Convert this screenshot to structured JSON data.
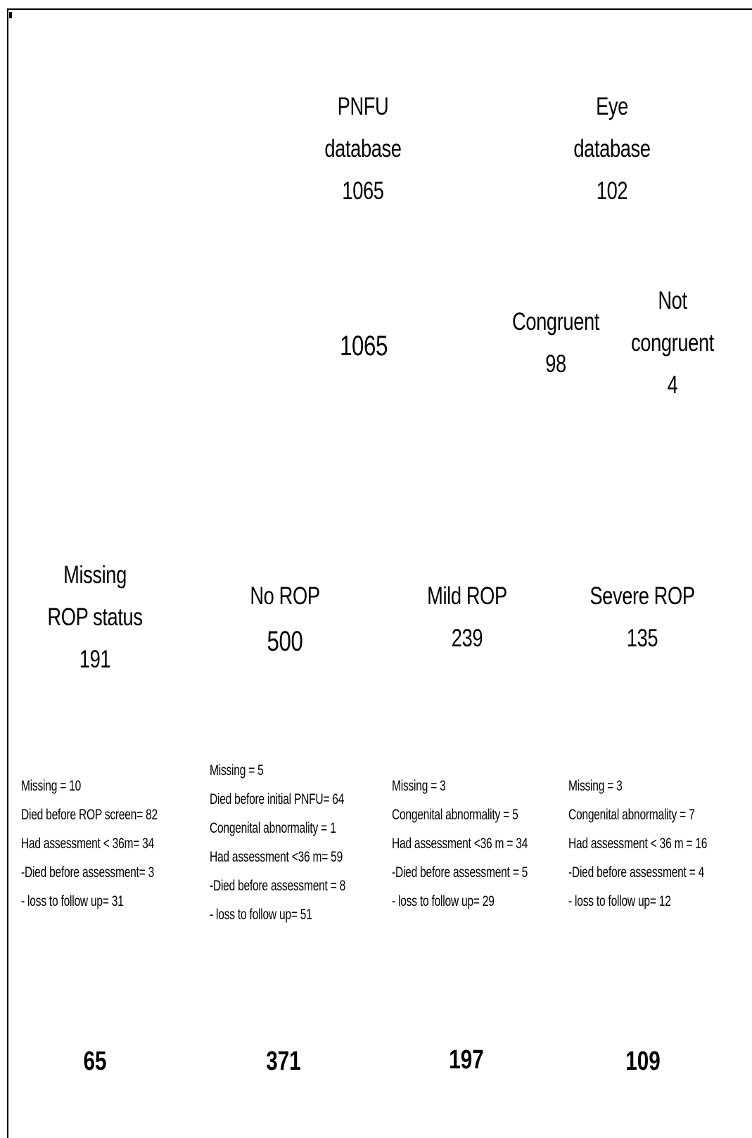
{
  "top": {
    "pnfu": {
      "line1": "PNFU",
      "line2": "database",
      "count": "1065"
    },
    "eye": {
      "line1": "Eye",
      "line2": "database",
      "count": "102"
    }
  },
  "middle": {
    "pnfu_count": "1065",
    "congruent": {
      "label": "Congruent",
      "count": "98"
    },
    "not_congruent": {
      "line1": "Not",
      "line2": "congruent",
      "count": "4"
    }
  },
  "groups": [
    {
      "label_lines": [
        "Missing",
        "ROP status"
      ],
      "count": "191",
      "details": [
        "Missing = 10",
        "Died before ROP screen= 82",
        "Had assessment < 36m=  34",
        "-Died  before assessment= 3",
        "- loss to follow up= 31"
      ],
      "final": "65"
    },
    {
      "label_lines": [
        "No ROP"
      ],
      "count": "500",
      "details": [
        "Missing  = 5",
        "Died before initial PNFU= 64",
        "Congenital abnormality  = 1",
        "Had assessment <36 m= 59",
        "-Died before assessment  = 8",
        "- loss to follow up= 51"
      ],
      "final": "371"
    },
    {
      "label_lines": [
        "Mild ROP"
      ],
      "count": "239",
      "details": [
        "Missing  = 3",
        "Congenital abnormality  =  5",
        "Had assessment <36 m  =  34",
        "-Died before assessment  =  5",
        "- loss to follow up= 29"
      ],
      "final": "197"
    },
    {
      "label_lines": [
        "Severe ROP"
      ],
      "count": "135",
      "details": [
        "Missing  = 3",
        "Congenital abnormality  =  7",
        "Had assessment < 36 m  =  16",
        "-Died before assessment  =  4",
        "- loss to follow up= 12"
      ],
      "final": "109"
    }
  ]
}
